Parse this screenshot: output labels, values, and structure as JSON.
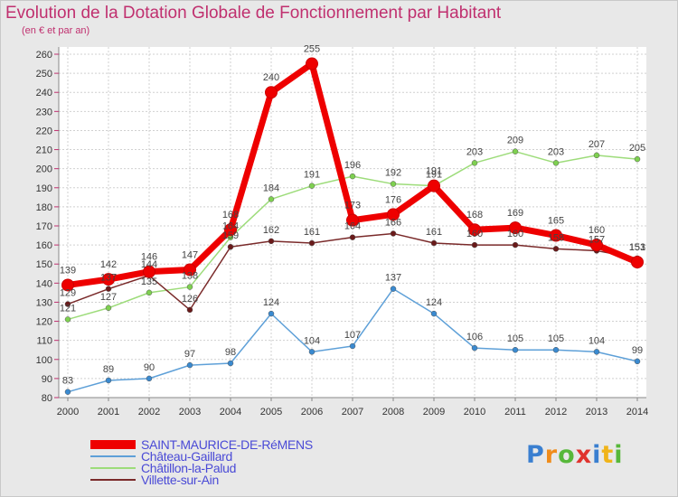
{
  "title": "Evolution de la Dotation Globale de Fonctionnement par Habitant",
  "subtitle": "(en € et par an)",
  "logo": {
    "text": "Proxiti",
    "colors": [
      "#3a7fd0",
      "#f08c1a",
      "#57b83a",
      "#e0332e",
      "#3a7fd0",
      "#f0b41a",
      "#57b83a"
    ]
  },
  "chart_data": {
    "type": "line",
    "title": "Evolution de la Dotation Globale de Fonctionnement par Habitant",
    "subtitle": "(en € et par an)",
    "x": [
      "2000",
      "2001",
      "2002",
      "2003",
      "2004",
      "2005",
      "2006",
      "2007",
      "2008",
      "2009",
      "2010",
      "2011",
      "2012",
      "2013",
      "2014"
    ],
    "ylim": [
      80,
      260
    ],
    "yticks": [
      80,
      90,
      100,
      110,
      120,
      130,
      140,
      150,
      160,
      170,
      180,
      190,
      200,
      210,
      220,
      230,
      240,
      250,
      260
    ],
    "grid": true,
    "legend_position": "bottom-left",
    "series": [
      {
        "name": "SAINT-MAURICE-DE-RéMENS",
        "color": "#ee0000",
        "marker": "#ee0000",
        "width": 7,
        "values": [
          139,
          142,
          146,
          147,
          168,
          240,
          255,
          173,
          176,
          191,
          168,
          169,
          165,
          160,
          151
        ]
      },
      {
        "name": "Château-Gaillard",
        "color": "#5ea0d8",
        "marker": "#3a8ad0",
        "width": 1.5,
        "values": [
          83,
          89,
          90,
          97,
          98,
          124,
          104,
          107,
          137,
          124,
          106,
          105,
          105,
          104,
          99
        ]
      },
      {
        "name": "Châtillon-la-Palud",
        "color": "#9ddc7a",
        "marker": "#7ed050",
        "width": 1.5,
        "values": [
          121,
          127,
          135,
          138,
          164,
          184,
          191,
          196,
          192,
          191,
          203,
          209,
          203,
          207,
          205
        ]
      },
      {
        "name": "Villette-sur-Ain",
        "color": "#7a2a2a",
        "marker": "#6a1a1a",
        "width": 1.5,
        "values": [
          129,
          137,
          144,
          126,
          159,
          162,
          161,
          164,
          166,
          161,
          160,
          160,
          158,
          157,
          153
        ]
      }
    ]
  }
}
